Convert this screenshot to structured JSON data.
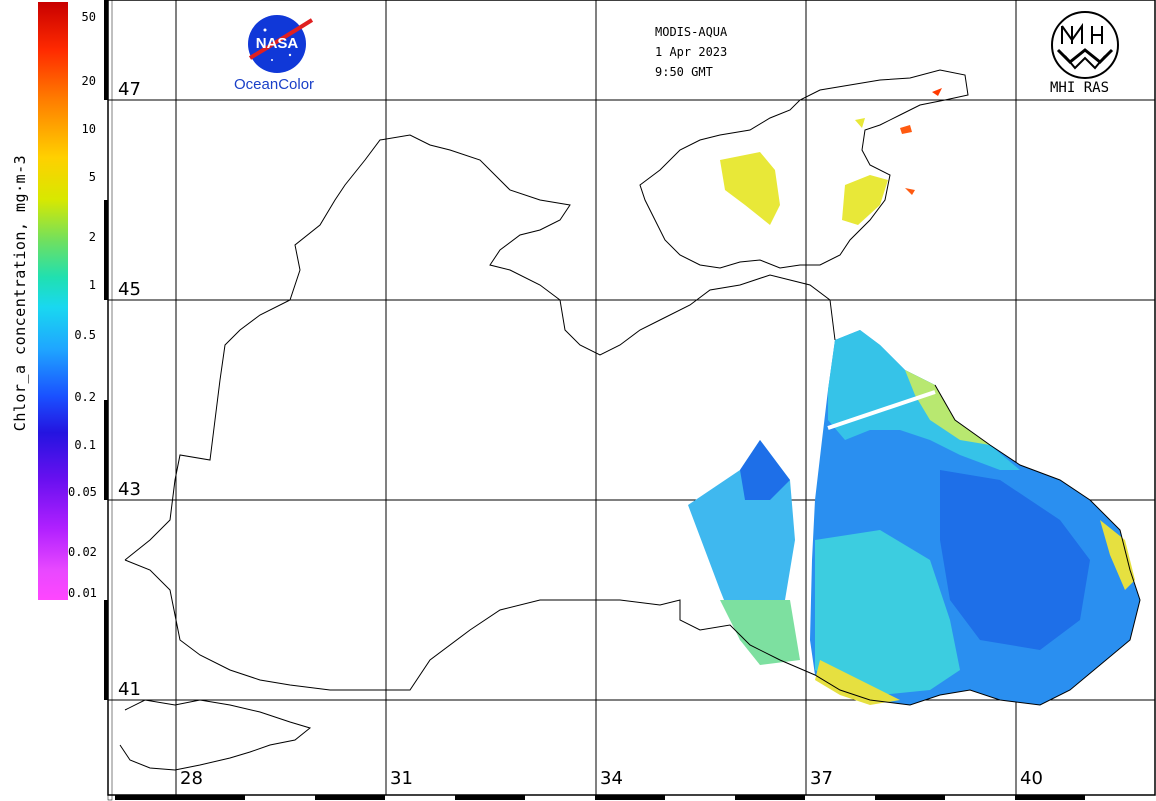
{
  "header": {
    "sensor": "MODIS-AQUA",
    "date": "1 Apr 2023",
    "time": "9:50 GMT"
  },
  "logos": {
    "nasa_text": "NASA",
    "oceancolor_text": "OceanColor",
    "institute_text": "MHI RAS"
  },
  "colorbar": {
    "title": "Chlor_a concentration, mg·m-3",
    "ticks": [
      "50",
      "20",
      "10",
      "5",
      "2",
      "1",
      "0.5",
      "0.2",
      "0.1",
      "0.05",
      "0.02",
      "0.01"
    ]
  },
  "grid": {
    "lat_labels": [
      "47",
      "45",
      "43",
      "41"
    ],
    "lon_labels": [
      "28",
      "31",
      "34",
      "37",
      "40"
    ]
  },
  "colors": {
    "water_low": "#1f7ff0",
    "water_mid": "#2ad0e6",
    "water_high": "#e2e83a",
    "bloom_red": "#ff3a00"
  }
}
